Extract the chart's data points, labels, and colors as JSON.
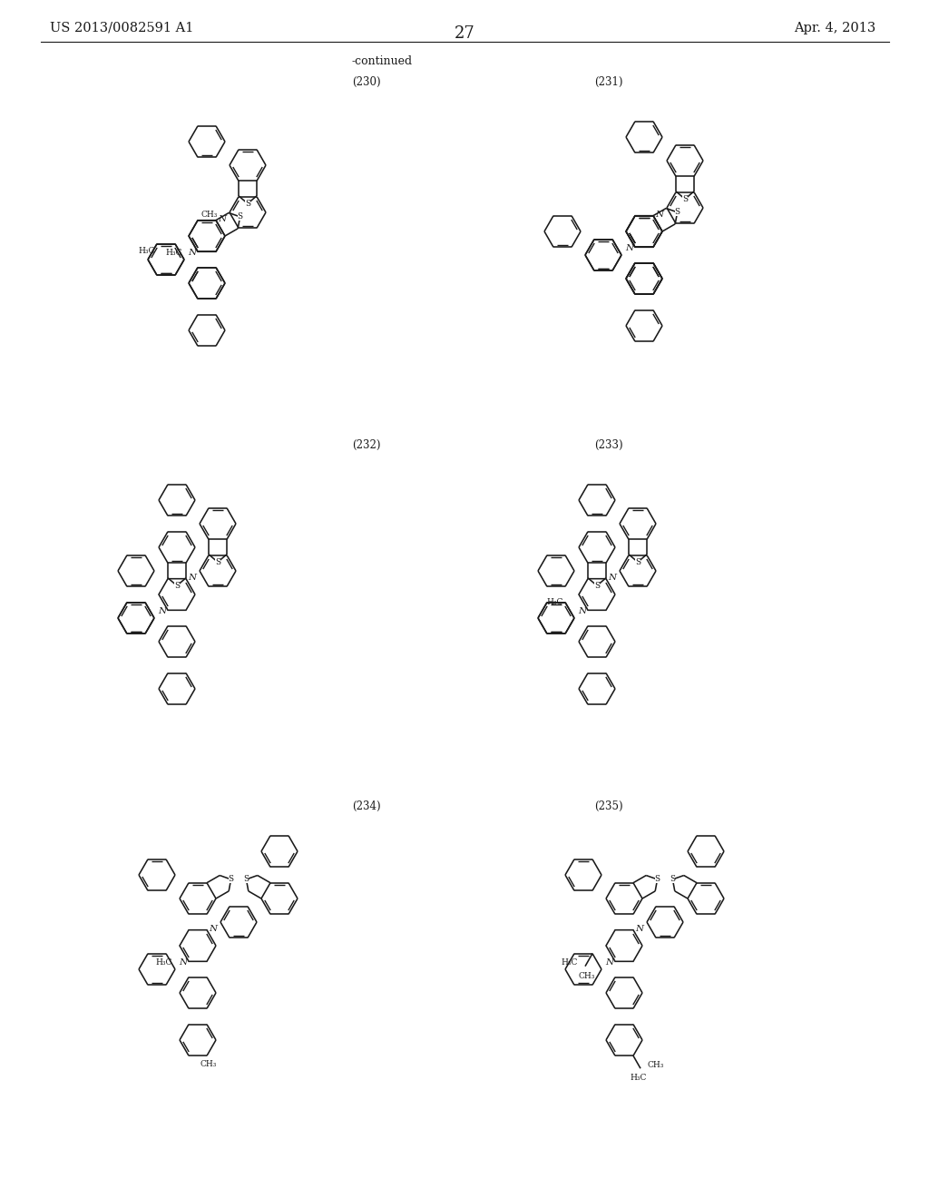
{
  "patent_number": "US 2013/0082591 A1",
  "patent_date": "Apr. 4, 2013",
  "page_number": "27",
  "continued": "-continued",
  "labels": [
    "(230)",
    "(231)",
    "(232)",
    "(233)",
    "(234)",
    "(235)"
  ],
  "bg": "#ffffff",
  "lc": "#1a1a1a"
}
